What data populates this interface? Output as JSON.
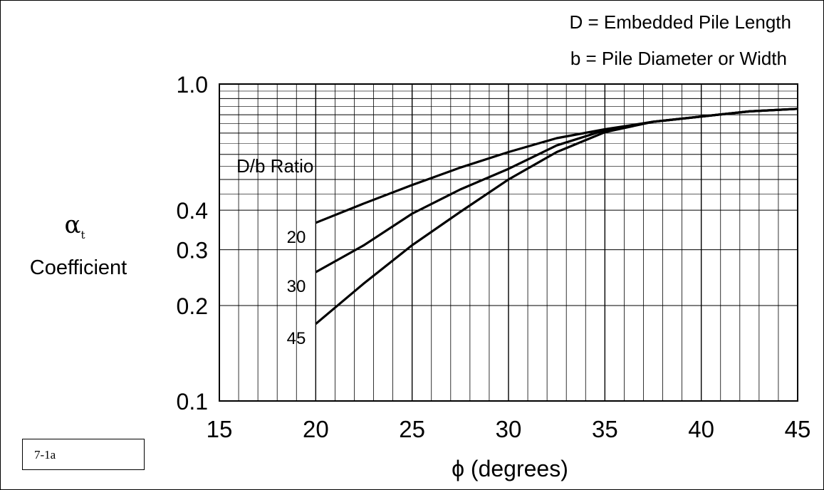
{
  "figure_tag": "7-1a",
  "colors": {
    "line": "#000000",
    "background": "#ffffff"
  },
  "chart_data": {
    "type": "line",
    "title": "",
    "notes": [
      "D = Embedded Pile Length",
      "b = Pile Diameter or Width"
    ],
    "xlabel": "ϕ (degrees)",
    "ylabel_symbol": "α",
    "ylabel_subscript": "t",
    "ylabel_text": "Coefficient",
    "xlim": [
      15,
      45
    ],
    "ylim": [
      0.1,
      1.0
    ],
    "yscale": "log",
    "grid": true,
    "x_ticks": [
      15,
      20,
      25,
      30,
      35,
      40,
      45
    ],
    "x_tick_labels": [
      "15",
      "20",
      "25",
      "30",
      "35",
      "40",
      "45"
    ],
    "y_ticks": [
      0.1,
      0.2,
      0.3,
      0.4,
      1.0
    ],
    "y_tick_labels": [
      "0.1",
      "0.2",
      "0.3",
      "0.4",
      "1.0"
    ],
    "legend_title": "D/b Ratio",
    "series": [
      {
        "name": "20",
        "x": [
          20,
          22.5,
          25,
          27.5,
          30,
          32.5,
          35,
          37.5,
          40,
          42.5,
          45
        ],
        "y": [
          0.365,
          0.42,
          0.48,
          0.545,
          0.61,
          0.675,
          0.72,
          0.76,
          0.79,
          0.82,
          0.835
        ]
      },
      {
        "name": "30",
        "x": [
          20,
          22.5,
          25,
          27.5,
          30,
          32.5,
          35,
          37.5,
          40,
          42.5,
          45
        ],
        "y": [
          0.255,
          0.31,
          0.39,
          0.465,
          0.54,
          0.64,
          0.715,
          0.76,
          0.79,
          0.82,
          0.835
        ]
      },
      {
        "name": "45",
        "x": [
          20,
          22.5,
          25,
          27.5,
          30,
          32.5,
          35,
          37.5,
          40,
          42.5,
          45
        ],
        "y": [
          0.175,
          0.235,
          0.31,
          0.395,
          0.5,
          0.61,
          0.705,
          0.76,
          0.79,
          0.82,
          0.835
        ]
      }
    ]
  }
}
